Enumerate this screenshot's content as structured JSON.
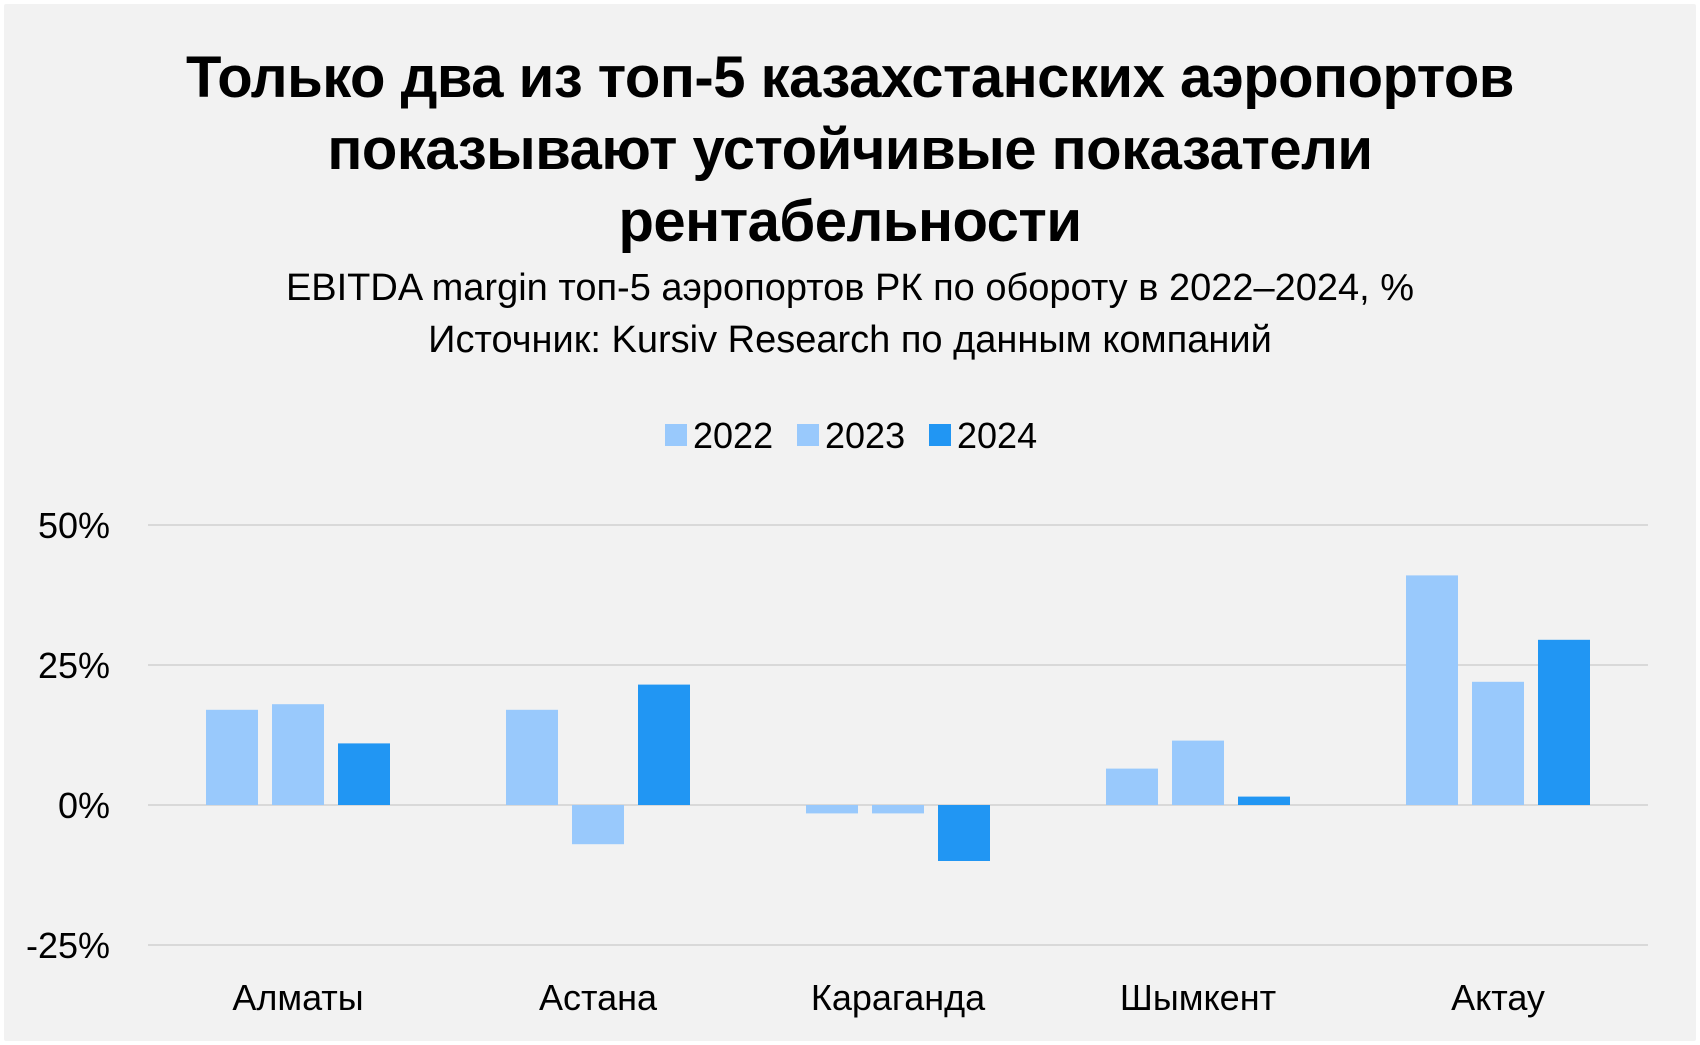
{
  "chart_data": {
    "type": "bar",
    "title": "Только два из топ-5 казахстанских аэропортов показывают устойчивые показатели рентабельности",
    "title_lines": [
      "Только два из топ-5 казахстанских аэропортов",
      "показывают устойчивые показатели",
      "рентабельности"
    ],
    "subtitle": "EBITDA margin топ-5 аэропортов РК по обороту в 2022–2024, %",
    "source": "Источник: Kursiv Research по данным компаний",
    "categories": [
      "Алматы",
      "Астана",
      "Караганда",
      "Шымкент",
      "Актау"
    ],
    "series": [
      {
        "name": "2022",
        "color": "#99c9fc",
        "values": [
          17,
          17,
          -1.5,
          6.5,
          41
        ]
      },
      {
        "name": "2023",
        "color": "#99c9fc",
        "values": [
          18,
          -7,
          -1.5,
          11.5,
          22
        ]
      },
      {
        "name": "2024",
        "color": "#2196f3",
        "values": [
          11,
          21.5,
          -10,
          1.5,
          29.5
        ]
      }
    ],
    "yticks": [
      {
        "value": 50,
        "label": "50%"
      },
      {
        "value": 25,
        "label": "25%"
      },
      {
        "value": 0,
        "label": "0%"
      },
      {
        "value": -25,
        "label": "-25%"
      }
    ],
    "ylim": [
      -25,
      50
    ],
    "xlabel": "",
    "ylabel": "",
    "grid": true,
    "legend_position": "top-center"
  }
}
